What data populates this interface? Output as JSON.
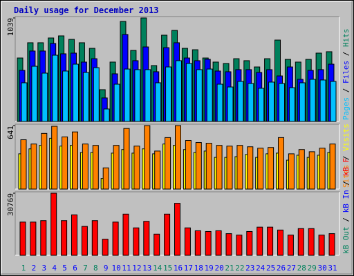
{
  "chart_data": {
    "type": "bar",
    "title": "Daily usage for December 2013",
    "categories": [
      "1",
      "2",
      "3",
      "4",
      "5",
      "6",
      "7",
      "8",
      "9",
      "10",
      "11",
      "12",
      "13",
      "14",
      "15",
      "16",
      "17",
      "18",
      "19",
      "20",
      "21",
      "22",
      "23",
      "24",
      "25",
      "26",
      "27",
      "28",
      "29",
      "30",
      "31"
    ],
    "category_colors": [
      "#00805C",
      "#0000FF",
      "#0000FF",
      "#0000FF",
      "#0000FF",
      "#0000FF",
      "#00805C",
      "#00805C",
      "#0000FF",
      "#0000FF",
      "#0000FF",
      "#0000FF",
      "#0000FF",
      "#00805C",
      "#00805C",
      "#0000FF",
      "#0000FF",
      "#0000FF",
      "#0000FF",
      "#0000FF",
      "#00805C",
      "#00805C",
      "#0000FF",
      "#0000FF",
      "#0000FF",
      "#0000FF",
      "#0000FF",
      "#00805C",
      "#00805C",
      "#0000FF",
      "#0000FF"
    ],
    "legend_separator": " / ",
    "panels": [
      {
        "ylim": [
          0,
          1039
        ],
        "yticks": [
          1039
        ],
        "series": [
          {
            "name": "Hits",
            "color": "#00805C",
            "values": [
              637,
              790,
              790,
              838,
              859,
              824,
              790,
              734,
              319,
              596,
              1004,
              713,
              1039,
              561,
              866,
              914,
              734,
              720,
              637,
              596,
              582,
              630,
              610,
              547,
              630,
              817,
              623,
              596,
              623,
              686,
              700
            ]
          },
          {
            "name": "Files",
            "color": "#0000FF",
            "values": [
              513,
              707,
              707,
              783,
              679,
              686,
              596,
              630,
              236,
              478,
              873,
              610,
              748,
              499,
              741,
              790,
              637,
              610,
              624,
              506,
              499,
              520,
              520,
              492,
              520,
              457,
              547,
              423,
              513,
              520,
              575
            ]
          },
          {
            "name": "Pages",
            "color": "#00C0FF",
            "values": [
              388,
              554,
              485,
              665,
              506,
              575,
              492,
              540,
              125,
              374,
              526,
              520,
              520,
              388,
              547,
              610,
              582,
              520,
              526,
              374,
              346,
              402,
              381,
              333,
              395,
              381,
              339,
              388,
              423,
              416,
              402
            ]
          }
        ]
      },
      {
        "ylim": [
          0,
          641
        ],
        "yticks": [
          641
        ],
        "series": [
          {
            "name": "Visits",
            "color": "#FFFF00",
            "values": [
              356,
              406,
              441,
              513,
              434,
              441,
              370,
              370,
              107,
              363,
              399,
              363,
              406,
              356,
              455,
              441,
              399,
              370,
              384,
              320,
              320,
              327,
              349,
              320,
              356,
              363,
              292,
              342,
              320,
              342,
              370
            ]
          },
          {
            "name": "Sites",
            "color": "#FF8000",
            "values": [
              498,
              455,
              562,
              634,
              527,
              577,
              455,
              441,
              214,
              441,
              612,
              434,
              641,
              384,
              520,
              641,
              491,
              470,
              463,
              441,
              434,
              441,
              427,
              413,
              420,
              520,
              356,
              399,
              377,
              413,
              455
            ]
          }
        ]
      },
      {
        "ylim": [
          0,
          30769
        ],
        "yticks": [
          30769
        ],
        "series": [
          {
            "name": "kB F",
            "color": "#FF0000",
            "values": [
              16470,
              16470,
              17185,
              30769,
              17185,
              20050,
              14320,
              17185,
              7990,
              16470,
              20410,
              13600,
              16830,
              10500,
              20410,
              25780,
              13600,
              12170,
              11810,
              12170,
              10740,
              10020,
              11810,
              13960,
              13960,
              12530,
              10020,
              13245,
              13245,
              10020,
              10740
            ]
          }
        ],
        "legend_only": [
          {
            "name": "kB In",
            "color": "#0000FF"
          },
          {
            "name": "kB Out",
            "color": "#00805C"
          }
        ]
      }
    ]
  }
}
